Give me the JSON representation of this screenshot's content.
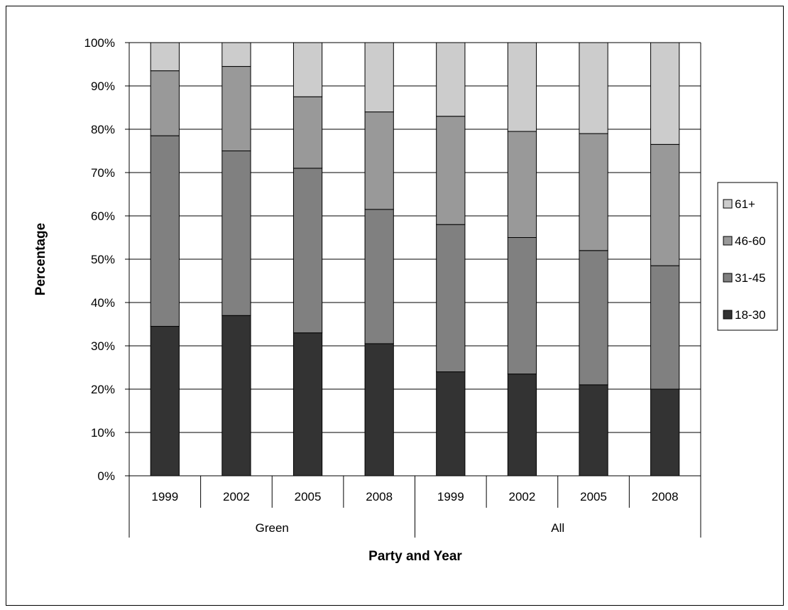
{
  "chart_data": {
    "type": "bar",
    "stacked": true,
    "percent_stacked": true,
    "groups": [
      {
        "label": "Green",
        "categories": [
          "1999",
          "2002",
          "2005",
          "2008"
        ]
      },
      {
        "label": "All",
        "categories": [
          "1999",
          "2002",
          "2005",
          "2008"
        ]
      }
    ],
    "series": [
      {
        "name": "18-30",
        "color": "#333333",
        "values": [
          34.5,
          37,
          33,
          30.5,
          24,
          23.5,
          21,
          20
        ]
      },
      {
        "name": "31-45",
        "color": "#808080",
        "values": [
          44,
          38,
          38,
          31,
          34,
          31.5,
          31,
          28.5
        ]
      },
      {
        "name": "46-60",
        "color": "#999999",
        "values": [
          15,
          19.5,
          16.5,
          22.5,
          25,
          24.5,
          27,
          28
        ]
      },
      {
        "name": "61+",
        "color": "#cccccc",
        "values": [
          6.5,
          5.5,
          12.5,
          16,
          17,
          20.5,
          21,
          23.5
        ]
      }
    ],
    "ylabel": "Percentage",
    "xlabel": "Party and Year",
    "ylim": [
      0,
      100
    ],
    "yticks": [
      "0%",
      "10%",
      "20%",
      "30%",
      "40%",
      "50%",
      "60%",
      "70%",
      "80%",
      "90%",
      "100%"
    ],
    "grid": true,
    "legend": "right"
  }
}
